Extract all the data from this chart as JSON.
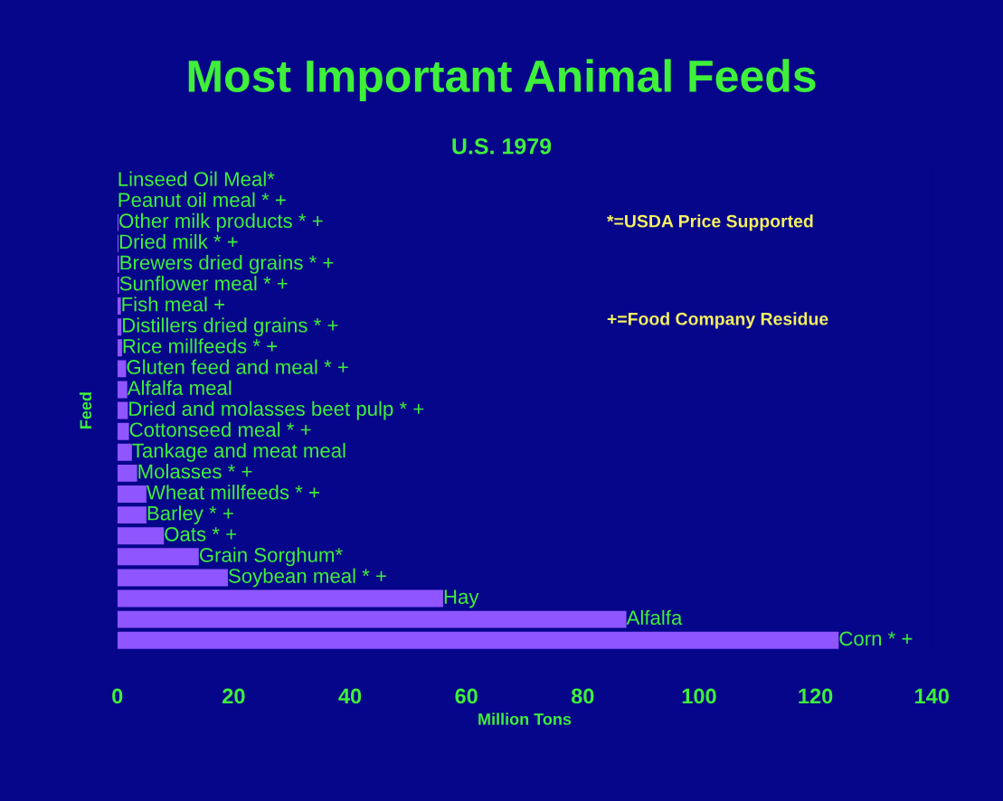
{
  "chart_data": {
    "type": "bar",
    "orientation": "horizontal",
    "title": "Most Important Animal Feeds",
    "subtitle": "U.S. 1979",
    "xlabel": "Million Tons",
    "ylabel": "Feed",
    "categories": [
      "Linseed Oil Meal*",
      "Peanut oil meal * +",
      "Other milk products * +",
      "Dried milk * +",
      "Brewers dried grains * +",
      "Sunflower meal * +",
      "Fish meal +",
      "Distillers dried grains * +",
      "Rice millfeeds * +",
      "Gluten feed and meal * +",
      "Alfalfa meal",
      "Dried and molasses beet pulp * +",
      "Cottonseed meal * +",
      "Tankage and meat meal",
      "Molasses * +",
      "Wheat millfeeds * +",
      "Barley * +",
      "Oats * +",
      "Grain Sorghum*",
      "Soybean meal * +",
      "Hay",
      "Alfalfa",
      "Corn * +"
    ],
    "values": [
      null,
      null,
      0.2,
      0.2,
      0.3,
      0.3,
      0.6,
      0.7,
      0.8,
      1.5,
      1.7,
      1.8,
      2,
      2.5,
      3.4,
      5,
      5,
      8,
      14,
      19,
      56,
      87.5,
      124
    ],
    "color": "#8f55ff",
    "xlim": [
      0,
      140
    ],
    "xticks": [
      0,
      20,
      40,
      60,
      80,
      100,
      120,
      140
    ],
    "tick_labels": "x",
    "grid": false,
    "legend": false,
    "annotations": [
      "*=USDA Price Supported",
      "+=Food Company Residue"
    ]
  }
}
